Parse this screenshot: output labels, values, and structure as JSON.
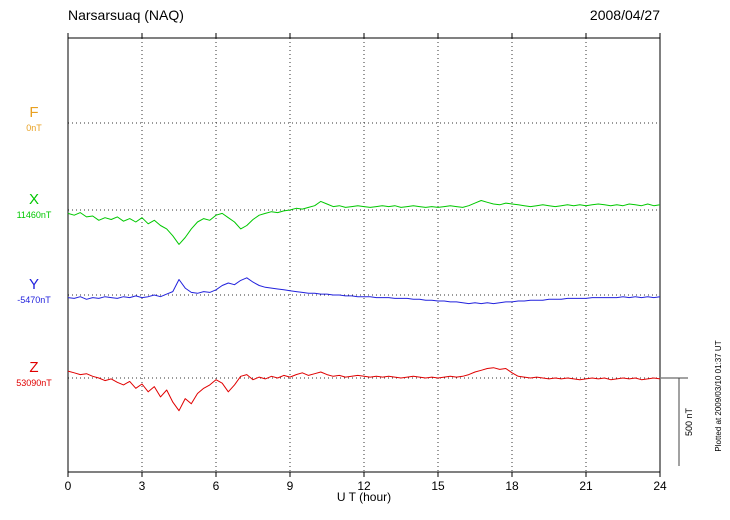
{
  "header": {
    "station": "Narsarsuaq (NAQ)",
    "date": "2008/04/27"
  },
  "axis": {
    "xlabel": "U T (hour)"
  },
  "scale_bar": {
    "label": "500 nT",
    "nT": 500
  },
  "note": "Plotted at 2009/03/10 01:37 UT",
  "channels": [
    {
      "letter": "F",
      "value_label": "0nT",
      "color": "#E8A020"
    },
    {
      "letter": "X",
      "value_label": "11460nT",
      "color": "#00C800"
    },
    {
      "letter": "Y",
      "value_label": "-5470nT",
      "color": "#2222DD"
    },
    {
      "letter": "Z",
      "value_label": "53090nT",
      "color": "#E00000"
    }
  ],
  "chart_data": {
    "type": "line",
    "title": "Narsarsuaq (NAQ) magnetogram",
    "date": "2008/04/27",
    "xlabel": "U T (hour)",
    "xlim": [
      0,
      24
    ],
    "xticks": [
      0,
      3,
      6,
      9,
      12,
      15,
      18,
      21,
      24
    ],
    "x_step_hours": 0.25,
    "scale_bar_nT": 500,
    "grid": "dotted",
    "legend_position": "left",
    "series": [
      {
        "name": "F",
        "baseline_nT": 0,
        "color": "#E8A020",
        "no_data": true,
        "offsets_nT": []
      },
      {
        "name": "X",
        "baseline_nT": 11460,
        "color": "#00C800",
        "offsets_nT": [
          -20,
          -30,
          -15,
          -40,
          -35,
          -60,
          -45,
          -55,
          -40,
          -65,
          -50,
          -70,
          -45,
          -80,
          -60,
          -90,
          -110,
          -150,
          -200,
          -160,
          -110,
          -70,
          -50,
          -60,
          -30,
          -20,
          -45,
          -70,
          -110,
          -90,
          -55,
          -30,
          -20,
          -10,
          -15,
          -5,
          0,
          10,
          5,
          15,
          25,
          50,
          35,
          20,
          25,
          15,
          20,
          25,
          20,
          15,
          20,
          25,
          20,
          25,
          15,
          20,
          25,
          20,
          15,
          20,
          15,
          20,
          25,
          20,
          15,
          25,
          40,
          55,
          45,
          35,
          30,
          40,
          35,
          30,
          25,
          20,
          25,
          30,
          25,
          20,
          25,
          30,
          25,
          30,
          25,
          30,
          35,
          30,
          25,
          30,
          25,
          35,
          30,
          25,
          35,
          25,
          30
        ]
      },
      {
        "name": "Y",
        "baseline_nT": -5470,
        "color": "#2222DD",
        "offsets_nT": [
          -15,
          -20,
          -10,
          -25,
          -15,
          -20,
          -10,
          -15,
          -20,
          -10,
          -15,
          -5,
          -15,
          -10,
          0,
          -10,
          5,
          20,
          90,
          40,
          15,
          10,
          20,
          15,
          30,
          55,
          70,
          60,
          85,
          100,
          75,
          55,
          45,
          40,
          35,
          30,
          25,
          20,
          15,
          10,
          10,
          5,
          5,
          0,
          0,
          -5,
          -5,
          -10,
          -10,
          -10,
          -15,
          -15,
          -15,
          -20,
          -20,
          -20,
          -25,
          -25,
          -30,
          -30,
          -35,
          -35,
          -40,
          -40,
          -45,
          -50,
          -45,
          -50,
          -45,
          -50,
          -45,
          -40,
          -40,
          -35,
          -35,
          -30,
          -30,
          -30,
          -25,
          -25,
          -25,
          -20,
          -20,
          -20,
          -20,
          -15,
          -15,
          -15,
          -15,
          -15,
          -10,
          -15,
          -10,
          -15,
          -10,
          -15,
          -10
        ]
      },
      {
        "name": "Z",
        "baseline_nT": 53090,
        "color": "#E00000",
        "offsets_nT": [
          40,
          30,
          20,
          25,
          10,
          0,
          -15,
          -5,
          -25,
          -40,
          -20,
          -60,
          -35,
          -80,
          -50,
          -110,
          -70,
          -140,
          -190,
          -120,
          -150,
          -90,
          -60,
          -40,
          -10,
          -30,
          -80,
          -40,
          10,
          20,
          -10,
          5,
          -5,
          10,
          0,
          15,
          5,
          20,
          30,
          15,
          25,
          35,
          20,
          10,
          15,
          5,
          10,
          15,
          10,
          5,
          10,
          5,
          10,
          5,
          0,
          5,
          10,
          5,
          0,
          5,
          0,
          5,
          10,
          5,
          10,
          20,
          35,
          45,
          55,
          60,
          50,
          55,
          30,
          10,
          5,
          0,
          5,
          0,
          -5,
          0,
          -5,
          0,
          -5,
          -10,
          -5,
          0,
          -5,
          0,
          -10,
          -5,
          0,
          -5,
          0,
          -10,
          -5,
          0,
          -5
        ]
      }
    ]
  }
}
